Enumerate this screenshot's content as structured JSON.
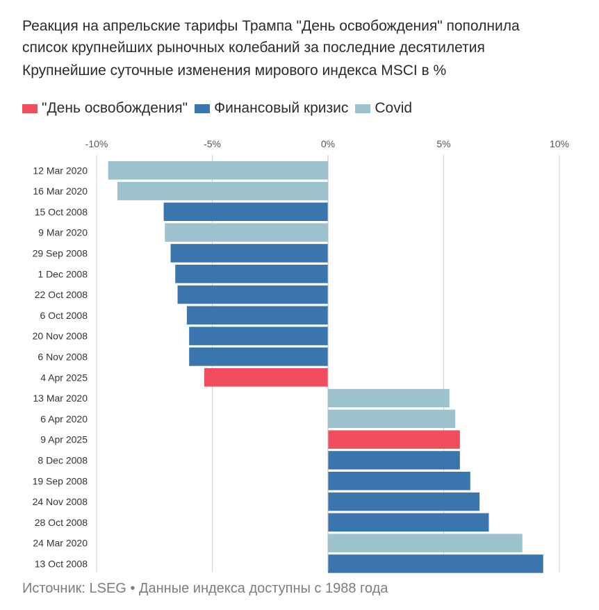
{
  "title": {
    "line1": "Реакция на апрельские тарифы Трампа \"День освобождения\" пополнила",
    "line2": "список крупнейших рыночных колебаний за последние десятилетия"
  },
  "subtitle": "Крупнейшие суточные изменения мирового индекса  MSCI в %",
  "legend": [
    {
      "label": "\"День освобождения\"",
      "color": "#f04e5e",
      "icon": "square-swatch"
    },
    {
      "label": "Финансовый кризис",
      "color": "#3b75ad",
      "icon": "square-swatch"
    },
    {
      "label": "Covid",
      "color": "#9bc2cd",
      "icon": "square-swatch"
    }
  ],
  "source": "Источник: LSEG • Данные индекса доступны с 1988 года",
  "chart_data": {
    "type": "bar",
    "orientation": "horizontal",
    "xlim": [
      -10,
      10
    ],
    "xticks": [
      -10,
      -5,
      0,
      5,
      10
    ],
    "xtick_labels": [
      "-10%",
      "-5%",
      "0%",
      "5%",
      "10%"
    ],
    "grid": true,
    "categories": [
      "12 Mar 2020",
      "16 Mar 2020",
      "15 Oct 2008",
      "9 Mar 2020",
      "29 Sep 2008",
      "1 Dec 2008",
      "22 Oct 2008",
      "6 Oct 2008",
      "20 Nov 2008",
      "6 Nov 2008",
      "4 Apr 2025",
      "13 Mar 2020",
      "6 Apr 2020",
      "9 Apr 2025",
      "8 Dec 2008",
      "19 Sep 2008",
      "24 Nov 2008",
      "28 Oct 2008",
      "24 Mar 2020",
      "13 Oct 2008"
    ],
    "values": [
      -9.5,
      -9.1,
      -7.1,
      -7.05,
      -6.8,
      -6.6,
      -6.5,
      -6.1,
      -6.0,
      -6.0,
      -5.35,
      5.25,
      5.5,
      5.7,
      5.7,
      6.15,
      6.55,
      6.95,
      8.4,
      9.3
    ],
    "groups": [
      "Covid",
      "Covid",
      "Финансовый кризис",
      "Covid",
      "Финансовый кризис",
      "Финансовый кризис",
      "Финансовый кризис",
      "Финансовый кризис",
      "Финансовый кризис",
      "Финансовый кризис",
      "\"День освобождения\"",
      "Covid",
      "Covid",
      "\"День освобождения\"",
      "Финансовый кризис",
      "Финансовый кризис",
      "Финансовый кризис",
      "Финансовый кризис",
      "Covid",
      "Финансовый кризис"
    ],
    "xlabel": "",
    "ylabel": ""
  }
}
